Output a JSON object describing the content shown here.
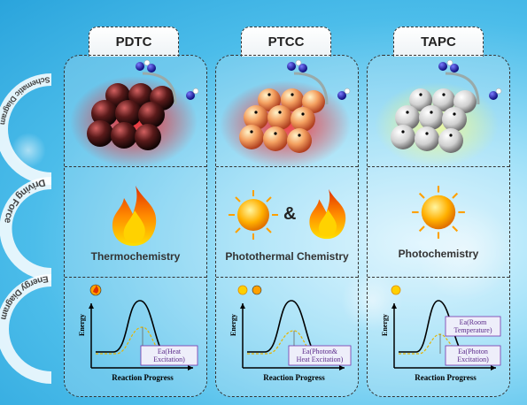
{
  "columns": [
    {
      "title": "PDTC",
      "force_label": "Thermochemistry",
      "ann": [
        "Ea(Heat",
        "Excitation)"
      ]
    },
    {
      "title": "PTCC",
      "force_label": "Photothermal Chemistry",
      "amp": "&",
      "ann": [
        "Ea(Photon&",
        "Heat Excitation)"
      ]
    },
    {
      "title": "TAPC",
      "force_label": "Photochemistry",
      "ann": [
        "Ea(Photon",
        "Excitation)"
      ],
      "ann2": [
        "Ea(Room",
        "Temperature)"
      ]
    }
  ],
  "row_labels": {
    "schematic": "Schematic Diagram",
    "force": "Driving Force",
    "energy": "Energy Diagram"
  },
  "axes": {
    "ylabel": "Energy",
    "xlabel": "Reaction Progress"
  }
}
